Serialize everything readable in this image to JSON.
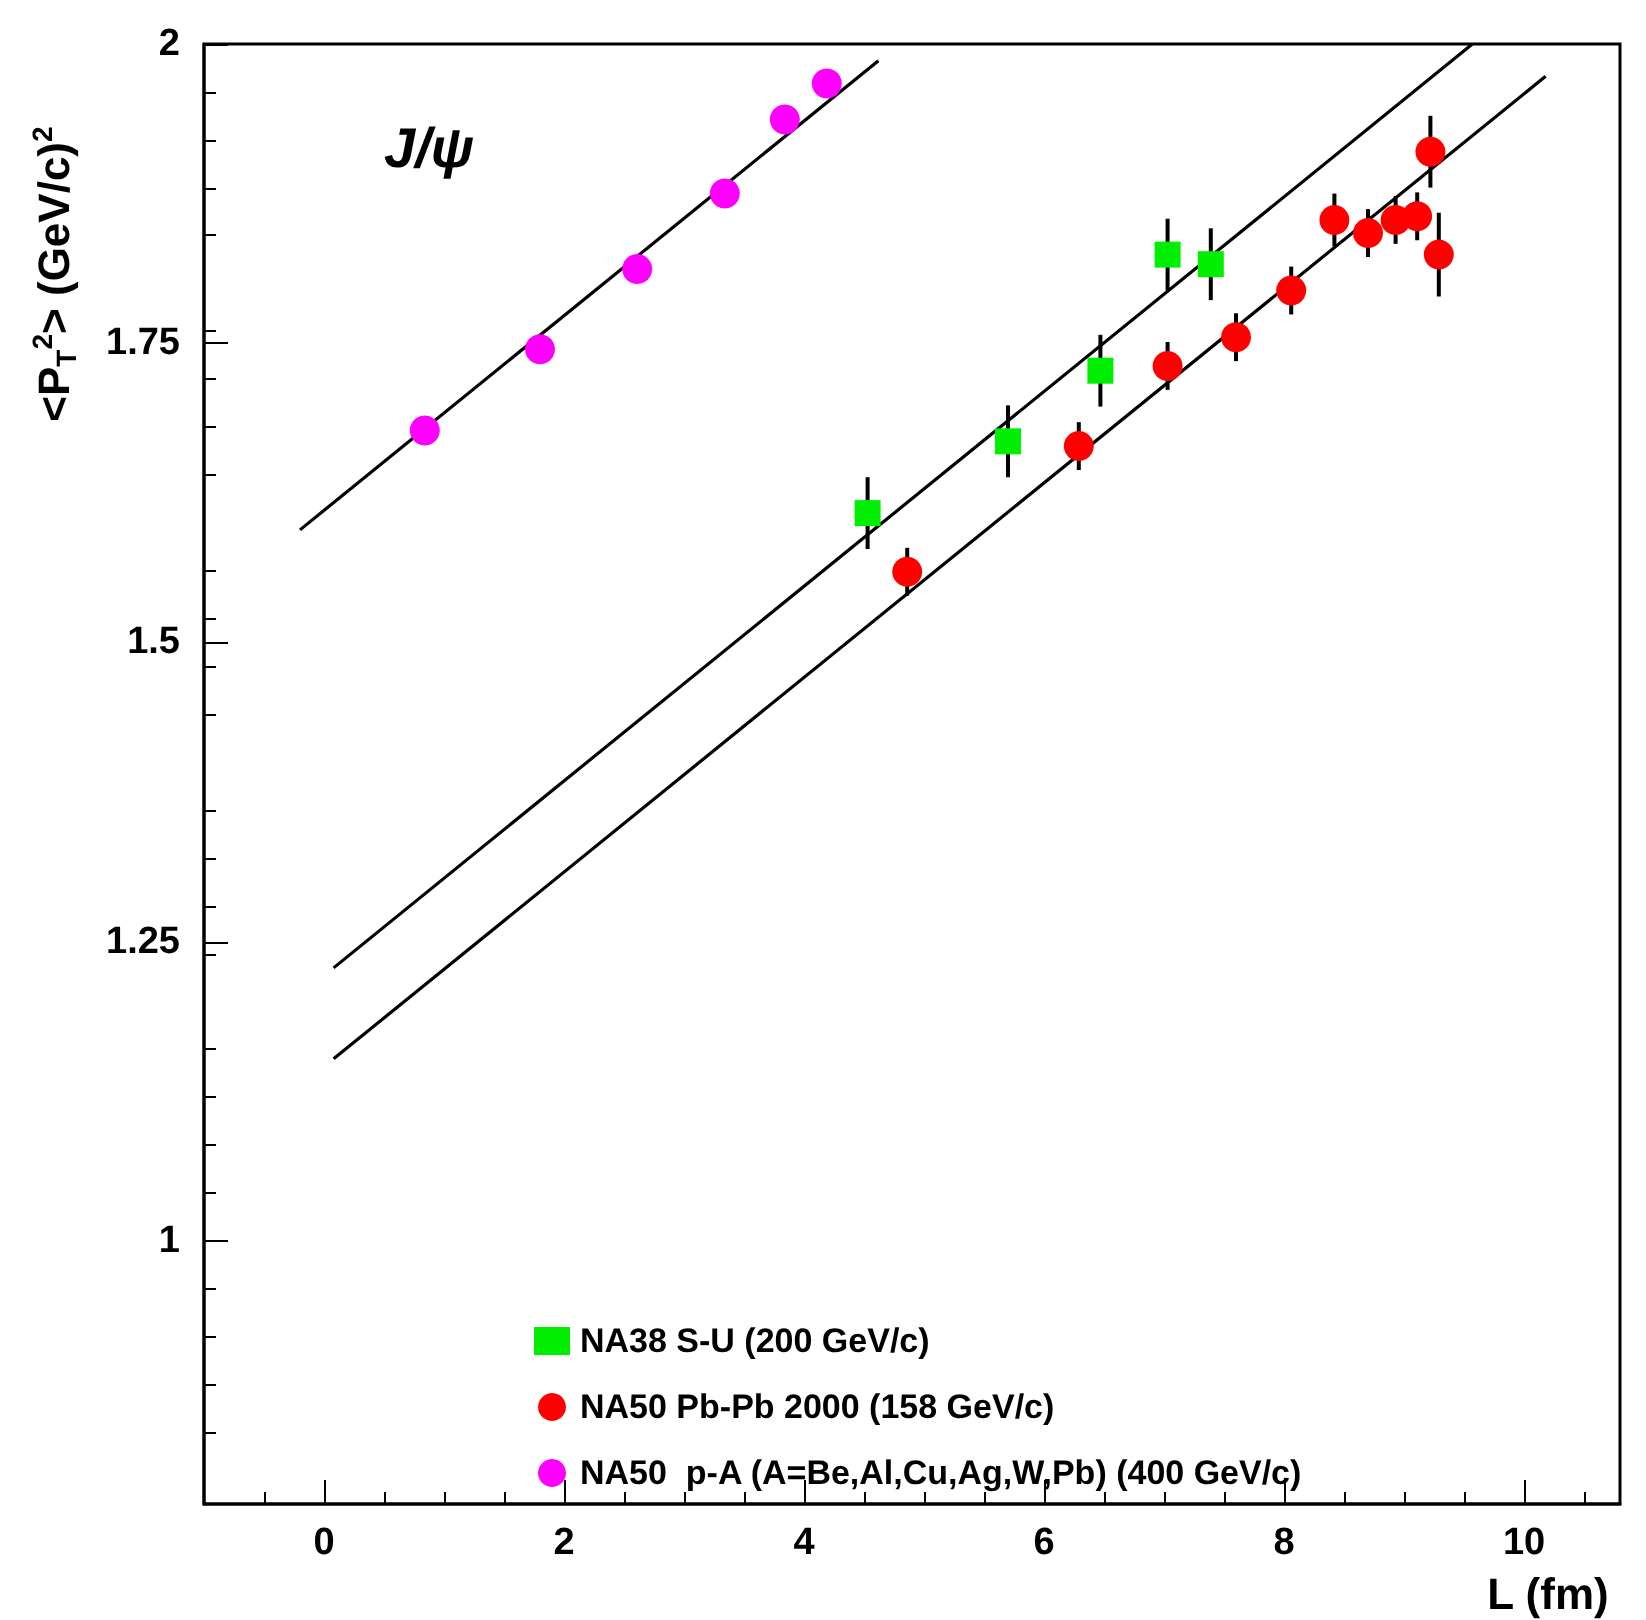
{
  "chart_data": {
    "type": "scatter",
    "xlabel": "L (fm)",
    "ylabel": "<P$_{T}$$^{2}$> (GeV/c)$^{2}$",
    "annotations": [
      "J/ψ"
    ],
    "xlim": [
      -1,
      10.8
    ],
    "xticks": [
      0,
      2,
      4,
      6,
      8,
      10
    ],
    "ylim": [
      0.78,
      2
    ],
    "yticks": [
      1,
      1.25,
      1.5,
      1.75,
      2
    ],
    "grid": false,
    "legend": "bottom",
    "series": [
      {
        "name": "NA38 S-U (200 GeV/c)",
        "color": "#00ee00",
        "marker": "square",
        "x": [
          4.53,
          5.7,
          6.47,
          7.03,
          7.39
        ],
        "values": [
          1.608,
          1.668,
          1.727,
          1.824,
          1.816
        ],
        "errors": [
          0.03,
          0.03,
          0.03,
          0.03,
          0.03
        ]
      },
      {
        "name": "NA50 Pb-Pb 2000 (158 GeV/c)",
        "color": "#ff0000",
        "marker": "circle",
        "x": [
          4.86,
          6.29,
          7.03,
          7.6,
          8.06,
          8.42,
          8.7,
          8.93,
          9.11,
          9.22,
          9.29
        ],
        "values": [
          1.559,
          1.664,
          1.731,
          1.755,
          1.794,
          1.853,
          1.842,
          1.853,
          1.856,
          1.91,
          1.824
        ],
        "errors": [
          0.02,
          0.02,
          0.02,
          0.02,
          0.02,
          0.022,
          0.02,
          0.02,
          0.02,
          0.03,
          0.035
        ]
      },
      {
        "name": "NA50  p-A (A=Be,Al,Cu,Ag,W,Pb) (400 GeV/c)",
        "color": "#ff00ff",
        "marker": "circle",
        "x": [
          0.84,
          1.8,
          2.61,
          3.34,
          3.84,
          4.19
        ],
        "values": [
          1.677,
          1.745,
          1.812,
          1.875,
          1.937,
          1.967
        ]
      },
      {
        "type": "line",
        "color": "#000000",
        "marker": "none",
        "x": [
          -0.2,
          4.62
        ],
        "values": [
          1.594,
          1.986
        ]
      },
      {
        "type": "line",
        "color": "#000000",
        "marker": "none",
        "x": [
          0.08,
          9.57
        ],
        "values": [
          1.228,
          2.0
        ]
      },
      {
        "type": "line",
        "color": "#000000",
        "marker": "none",
        "x": [
          0.08,
          10.18
        ],
        "values": [
          1.152,
          1.973
        ]
      }
    ]
  }
}
